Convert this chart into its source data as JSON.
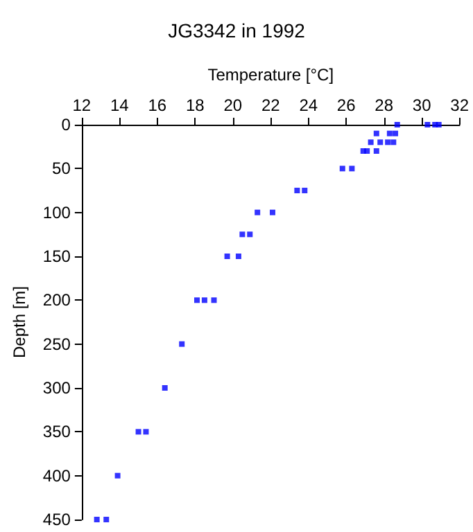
{
  "chart_data": {
    "type": "scatter",
    "title": "JG3342 in 1992",
    "xlabel": "Temperature [°C]",
    "ylabel": "Depth [m]",
    "x": [
      28.7,
      30.3,
      30.7,
      30.9,
      27.6,
      28.3,
      28.6,
      27.3,
      27.8,
      28.2,
      28.5,
      26.9,
      27.1,
      27.6,
      25.8,
      26.3,
      23.4,
      23.8,
      21.3,
      22.1,
      20.5,
      20.9,
      19.7,
      20.3,
      18.1,
      18.5,
      19.0,
      17.3,
      16.4,
      15.0,
      15.4,
      13.9,
      12.8,
      13.3
    ],
    "series": [
      {
        "color": "#0000ff",
        "values": [
          0,
          0,
          0,
          0,
          10,
          10,
          10,
          20,
          20,
          20,
          20,
          30,
          30,
          30,
          50,
          50,
          75,
          75,
          100,
          100,
          125,
          125,
          150,
          150,
          200,
          200,
          200,
          250,
          300,
          350,
          350,
          400,
          450,
          450
        ]
      }
    ],
    "xlim": [
      12,
      32
    ],
    "xticks": [
      12,
      14,
      16,
      18,
      20,
      22,
      24,
      26,
      28,
      30,
      32
    ],
    "ylim": [
      450,
      0
    ],
    "yticks": [
      0,
      50,
      100,
      150,
      200,
      250,
      300,
      350,
      400,
      450
    ],
    "marker": "square",
    "grid": false
  }
}
